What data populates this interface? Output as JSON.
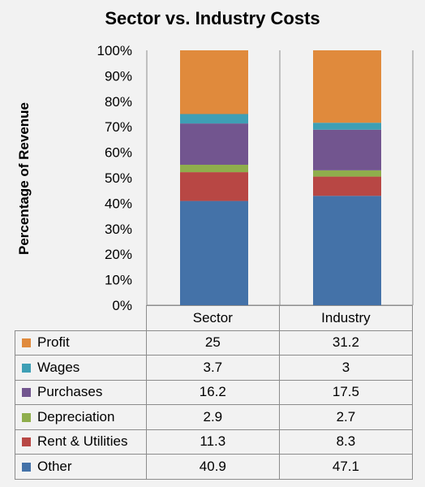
{
  "chart_data": {
    "type": "bar",
    "stacked": true,
    "percent_stacked": true,
    "title": "Sector vs. Industry Costs",
    "xlabel": "",
    "ylabel": "Percentage of Revenue",
    "categories": [
      "Sector",
      "Industry"
    ],
    "ylim": [
      0,
      100
    ],
    "y_ticks": [
      "0%",
      "10%",
      "20%",
      "30%",
      "40%",
      "50%",
      "60%",
      "70%",
      "80%",
      "90%",
      "100%"
    ],
    "grid": true,
    "legend": "data-table-below",
    "series": [
      {
        "name": "Other",
        "color": "#4472a8",
        "values": [
          "40.9",
          "47.1"
        ]
      },
      {
        "name": "Rent & Utilities",
        "color": "#b84744",
        "values": [
          "11.3",
          "8.3"
        ]
      },
      {
        "name": "Depreciation",
        "color": "#8fae4c",
        "values": [
          "2.9",
          "2.7"
        ]
      },
      {
        "name": "Purchases",
        "color": "#72558f",
        "values": [
          "16.2",
          "17.5"
        ]
      },
      {
        "name": "Wages",
        "color": "#3e9fb5",
        "values": [
          "3.7",
          "3"
        ]
      },
      {
        "name": "Profit",
        "color": "#e08a3c",
        "values": [
          "25",
          "31.2"
        ]
      }
    ]
  }
}
